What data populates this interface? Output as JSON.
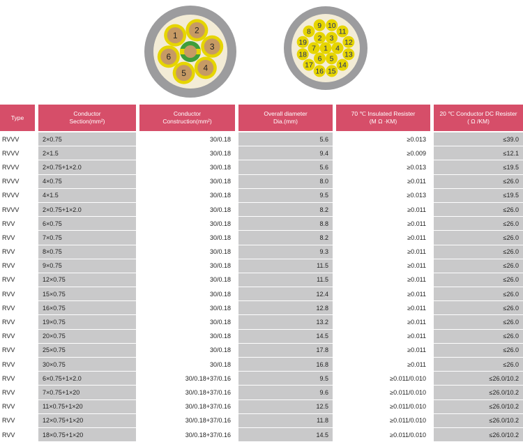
{
  "diagrams": {
    "left_labels": [
      "2",
      "3",
      "4",
      "5",
      "6",
      "1"
    ],
    "right_labels": {
      "outer": [
        "9",
        "10",
        "11",
        "12",
        "13",
        "14",
        "15",
        "16",
        "17",
        "18",
        "19",
        "8"
      ],
      "inner": [
        "2",
        "3",
        "4",
        "5",
        "6",
        "7"
      ],
      "center": "1"
    },
    "colors": {
      "sheath": "#9c9c9e",
      "filler": "#f3ecd6",
      "yellow": "#e6d500",
      "green": "#3e9e3a",
      "copper": "#c69a64"
    }
  },
  "table": {
    "headers": [
      {
        "lines": [
          "Type"
        ]
      },
      {
        "lines": [
          "Conductor",
          "Section(mm²)"
        ]
      },
      {
        "lines": [
          "Conductor",
          "Construction(mm²)"
        ]
      },
      {
        "lines": [
          "Overall diameter",
          "Dia.(mm)"
        ]
      },
      {
        "lines": [
          "70 ℃ Insulated Resister",
          "(M Ω ·KM)"
        ]
      },
      {
        "lines": [
          "20 ℃ Conductor DC Resister",
          "( Ω /KM)"
        ]
      }
    ],
    "rows": [
      [
        "RVVV",
        "2×0.75",
        "30/0.18",
        "5.6",
        "≥0.013",
        "≤39.0"
      ],
      [
        "RVVV",
        "2×1.5",
        "30/0.18",
        "9.4",
        "≥0.009",
        "≤12.1"
      ],
      [
        "RVVV",
        "2×0.75+1×2.0",
        "30/0.18",
        "5.6",
        "≥0.013",
        "≤19.5"
      ],
      [
        "RVVV",
        "4×0.75",
        "30/0.18",
        "8.0",
        "≥0.011",
        "≤26.0"
      ],
      [
        "RVVV",
        "4×1.5",
        "30/0.18",
        "9.5",
        "≥0.013",
        "≤19.5"
      ],
      [
        "RVVV",
        "2×0.75+1×2.0",
        "30/0.18",
        "8.2",
        "≥0.011",
        "≤26.0"
      ],
      [
        "RVV",
        "6×0.75",
        "30/0.18",
        "8.8",
        "≥0.011",
        "≤26.0"
      ],
      [
        "RVV",
        "7×0.75",
        "30/0.18",
        "8.2",
        "≥0.011",
        "≤26.0"
      ],
      [
        "RVV",
        "8×0.75",
        "30/0.18",
        "9.3",
        "≥0.011",
        "≤26.0"
      ],
      [
        "RVV",
        "9×0.75",
        "30/0.18",
        "11.5",
        "≥0.011",
        "≤26.0"
      ],
      [
        "RVV",
        "12×0.75",
        "30/0.18",
        "11.5",
        "≥0.011",
        "≤26.0"
      ],
      [
        "RVV",
        "15×0.75",
        "30/0.18",
        "12.4",
        "≥0.011",
        "≤26.0"
      ],
      [
        "RVV",
        "16×0.75",
        "30/0.18",
        "12.8",
        "≥0.011",
        "≤26.0"
      ],
      [
        "RVV",
        "19×0.75",
        "30/0.18",
        "13.2",
        "≥0.011",
        "≤26.0"
      ],
      [
        "RVV",
        "20×0.75",
        "30/0.18",
        "14.5",
        "≥0.011",
        "≤26.0"
      ],
      [
        "RVV",
        "25×0.75",
        "30/0.18",
        "17.8",
        "≥0.011",
        "≤26.0"
      ],
      [
        "RVV",
        "30×0.75",
        "30/0.18",
        "16.8",
        "≥0.011",
        "≤26.0"
      ],
      [
        "RVV",
        "6×0.75+1×2.0",
        "30/0.18+37/0.16",
        "9.5",
        "≥0.011/0.010",
        "≤26.0/10.2"
      ],
      [
        "RVV",
        "7×0.75+1×20",
        "30/0.18+37/0.16",
        "9.6",
        "≥0.011/0.010",
        "≤26.0/10.2"
      ],
      [
        "RVV",
        "11×0.75+1×20",
        "30/0.18+37/0.16",
        "12.5",
        "≥0.011/0.010",
        "≤26.0/10.2"
      ],
      [
        "RVV",
        "12×0.75+1×20",
        "30/0.18+37/0.16",
        "11.8",
        "≥0.011/0.010",
        "≤26.0/10.2"
      ],
      [
        "RVV",
        "18×0.75+1×20",
        "30/0.18+37/0.16",
        "14.5",
        "≥0.011/0.010",
        "≤26.0/10.2"
      ]
    ]
  }
}
